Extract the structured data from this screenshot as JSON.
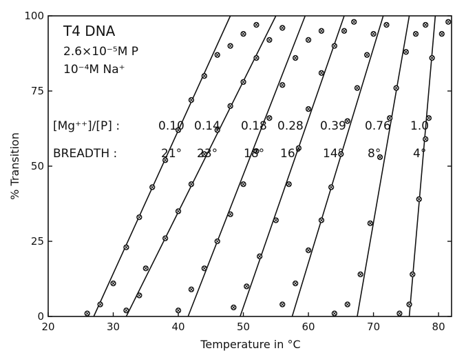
{
  "chart_data": {
    "type": "scatter",
    "title": "T4 DNA",
    "subtitle_lines": [
      "2.6×10⁻⁵M P",
      "10⁻⁴M Na⁺"
    ],
    "xlabel": "Temperature in °C",
    "ylabel": "% Transition",
    "xlim": [
      20,
      82
    ],
    "ylim": [
      0,
      100
    ],
    "x_ticks": [
      20,
      30,
      40,
      50,
      60,
      70,
      80
    ],
    "y_ticks": [
      0,
      25,
      50,
      75,
      100
    ],
    "grid": false,
    "ratio_label": "[Mg⁺⁺]/[P] :",
    "breadth_label": "BREADTH :",
    "series": [
      {
        "ratio": "0.10",
        "breadth": "21°",
        "line": [
          [
            27,
            0
          ],
          [
            48,
            100
          ]
        ],
        "points": [
          [
            26,
            1
          ],
          [
            28,
            4
          ],
          [
            30,
            11
          ],
          [
            32,
            23
          ],
          [
            34,
            33
          ],
          [
            36,
            43
          ],
          [
            38,
            52
          ],
          [
            40,
            62
          ],
          [
            42,
            72
          ],
          [
            44,
            80
          ],
          [
            46,
            87
          ],
          [
            48,
            90
          ],
          [
            50,
            94
          ],
          [
            52,
            97
          ]
        ]
      },
      {
        "ratio": "0.14",
        "breadth": "23°",
        "line": [
          [
            32,
            0
          ],
          [
            55,
            100
          ]
        ],
        "points": [
          [
            32,
            2
          ],
          [
            34,
            7
          ],
          [
            35,
            16
          ],
          [
            38,
            26
          ],
          [
            40,
            35
          ],
          [
            42,
            44
          ],
          [
            44,
            54
          ],
          [
            46,
            62
          ],
          [
            48,
            70
          ],
          [
            50,
            78
          ],
          [
            52,
            86
          ],
          [
            54,
            92
          ],
          [
            56,
            96
          ]
        ]
      },
      {
        "ratio": "0.18",
        "breadth": "18°",
        "line": [
          [
            41.5,
            0
          ],
          [
            59.5,
            100
          ]
        ],
        "points": [
          [
            40,
            2
          ],
          [
            42,
            9
          ],
          [
            44,
            16
          ],
          [
            46,
            25
          ],
          [
            48,
            34
          ],
          [
            50,
            44
          ],
          [
            52,
            55
          ],
          [
            54,
            66
          ],
          [
            56,
            77
          ],
          [
            58,
            86
          ],
          [
            60,
            92
          ],
          [
            62,
            95
          ]
        ]
      },
      {
        "ratio": "0.28",
        "breadth": "16°",
        "line": [
          [
            49.5,
            0
          ],
          [
            65.5,
            100
          ]
        ],
        "points": [
          [
            48.5,
            3
          ],
          [
            50.5,
            10
          ],
          [
            52.5,
            20
          ],
          [
            55,
            32
          ],
          [
            57,
            44
          ],
          [
            58.5,
            56
          ],
          [
            60,
            69
          ],
          [
            62,
            81
          ],
          [
            64,
            90
          ],
          [
            65.5,
            95
          ],
          [
            67,
            98
          ]
        ]
      },
      {
        "ratio": "0.39",
        "breadth": "14°",
        "line": [
          [
            57.5,
            0
          ],
          [
            71.5,
            100
          ]
        ],
        "points": [
          [
            56,
            4
          ],
          [
            58,
            11
          ],
          [
            60,
            22
          ],
          [
            62,
            32
          ],
          [
            63.5,
            43
          ],
          [
            65,
            54
          ],
          [
            66,
            65
          ],
          [
            67.5,
            76
          ],
          [
            69,
            87
          ],
          [
            70,
            94
          ],
          [
            72,
            97
          ]
        ]
      },
      {
        "ratio": "0.76",
        "breadth": "8°",
        "line": [
          [
            67.5,
            0
          ],
          [
            75.5,
            100
          ]
        ],
        "points": [
          [
            64,
            1
          ],
          [
            66,
            4
          ],
          [
            68,
            14
          ],
          [
            69.5,
            31
          ],
          [
            71,
            53
          ],
          [
            72.5,
            66
          ],
          [
            73.5,
            76
          ],
          [
            75,
            88
          ],
          [
            76.5,
            94
          ],
          [
            78,
            97
          ]
        ]
      },
      {
        "ratio": "1.0",
        "breadth": "4°",
        "line": [
          [
            75.5,
            0
          ],
          [
            79.5,
            100
          ]
        ],
        "points": [
          [
            74,
            1
          ],
          [
            75.5,
            4
          ],
          [
            76,
            14
          ],
          [
            77,
            39
          ],
          [
            78,
            59
          ],
          [
            78.5,
            66
          ],
          [
            79,
            86
          ],
          [
            80.5,
            94
          ],
          [
            81.5,
            98
          ]
        ]
      }
    ]
  }
}
